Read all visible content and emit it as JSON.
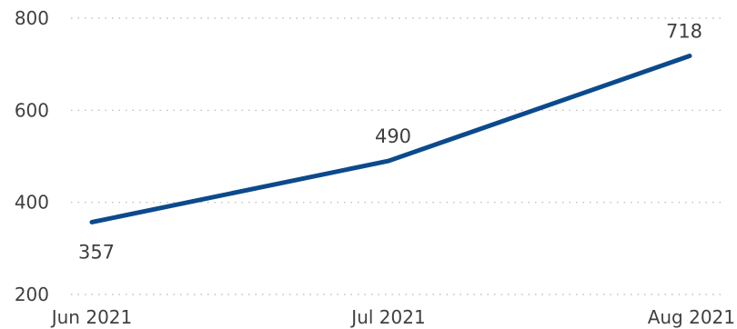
{
  "chart_data": {
    "type": "line",
    "title": "",
    "xlabel": "",
    "ylabel": "",
    "categories": [
      "Jun 2021",
      "Jul 2021",
      "Aug 2021"
    ],
    "series": [
      {
        "values": [
          357,
          490,
          718
        ],
        "color": "#0b4a8c"
      }
    ],
    "data_labels": [
      "357",
      "490",
      "718"
    ],
    "ylim": [
      200,
      800
    ],
    "yticks": [
      200,
      400,
      600,
      800
    ],
    "ytick_labels": [
      "200",
      "400",
      "600",
      "800"
    ],
    "grid": true,
    "grid_color": "#b3b3b3",
    "text_color": "#404040"
  }
}
